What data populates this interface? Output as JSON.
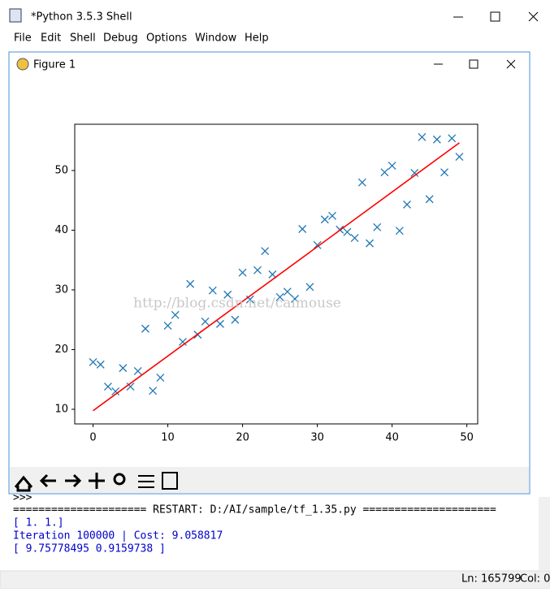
{
  "shell": {
    "title": "*Python 3.5.3 Shell",
    "menu": [
      "File",
      "Edit",
      "Shell",
      "Debug",
      "Options",
      "Window",
      "Help"
    ],
    "lines": [
      ">>>",
      "===================== RESTART: D:/AI/sample/tf_1.35.py =====================",
      "[ 1.  1.]",
      "Iteration 100000 | Cost: 9.058817",
      "[ 9.75778495  0.9159738 ]"
    ],
    "status": {
      "line": "Ln: 165799",
      "col": "Col: 0"
    }
  },
  "figure": {
    "title": "Figure 1",
    "watermark": "http://blog.csdn.net/caimouse"
  },
  "chart_data": {
    "type": "scatter",
    "x": [
      0,
      1,
      2,
      3,
      4,
      5,
      6,
      7,
      8,
      9,
      10,
      11,
      12,
      13,
      14,
      15,
      16,
      17,
      18,
      19,
      20,
      21,
      22,
      23,
      24,
      25,
      26,
      27,
      28,
      29,
      30,
      31,
      32,
      33,
      34,
      35,
      36,
      37,
      38,
      39,
      40,
      41,
      42,
      43,
      44,
      45,
      46,
      47,
      48,
      49
    ],
    "series": [
      {
        "type": "scatter",
        "color": "#1f77b4",
        "values": [
          17.9,
          17.5,
          13.8,
          13.0,
          16.9,
          13.8,
          16.4,
          23.5,
          13.1,
          15.3,
          24.0,
          25.8,
          21.3,
          31.0,
          22.5,
          24.7,
          29.9,
          24.3,
          29.2,
          25.0,
          32.9,
          28.4,
          33.3,
          36.5,
          32.6,
          28.8,
          29.7,
          28.5,
          40.2,
          30.5,
          37.5,
          41.8,
          42.4,
          40.1,
          39.7,
          38.7,
          48.0,
          37.8,
          40.5,
          49.7,
          50.8,
          39.9,
          44.3,
          49.6,
          55.6,
          45.2,
          55.2,
          49.7,
          55.4,
          52.3
        ]
      },
      {
        "type": "line",
        "color": "#ff0000",
        "x": [
          0,
          49
        ],
        "values": [
          9.76,
          54.64
        ]
      }
    ],
    "xlim": [
      -2.45,
      51.45
    ],
    "ylim": [
      7.55,
      57.75
    ],
    "xticks": [
      0,
      10,
      20,
      30,
      40,
      50
    ],
    "yticks": [
      10,
      20,
      30,
      40,
      50
    ]
  }
}
